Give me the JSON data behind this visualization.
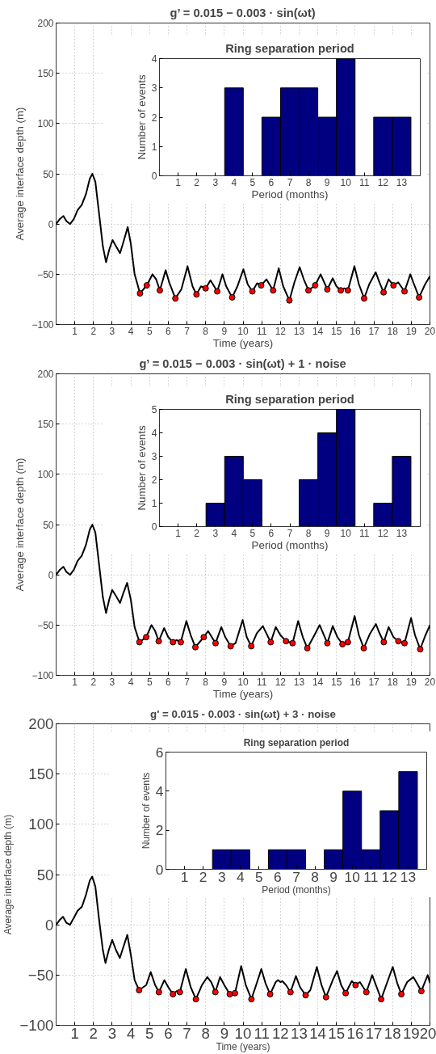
{
  "chart_data": [
    {
      "type": "line",
      "title": "g’ = 0.015 − 0.003 · sin(ωt)",
      "xlabel": "Time (years)",
      "ylabel": "Average interface depth (m)",
      "xlim": [
        0,
        20
      ],
      "ylim": [
        -100,
        200
      ],
      "xticks": [
        1,
        2,
        3,
        4,
        5,
        6,
        7,
        8,
        9,
        10,
        11,
        12,
        13,
        14,
        15,
        16,
        17,
        18,
        19,
        20
      ],
      "yticks": [
        -100,
        -50,
        0,
        50,
        100,
        150,
        200
      ],
      "grid": true,
      "series": [
        {
          "type": "line",
          "color": "#000000",
          "x": [
            0,
            0.2,
            0.39,
            0.55,
            0.75,
            0.95,
            1.15,
            1.37,
            1.6,
            1.8,
            1.94,
            2.1,
            2.3,
            2.5,
            2.67,
            2.85,
            3.02,
            3.2,
            3.42,
            3.6,
            3.83,
            4.0,
            4.2,
            4.49,
            4.85,
            5.16,
            5.35,
            5.55,
            5.86,
            6.05,
            6.38,
            6.7,
            7.03,
            7.3,
            7.51,
            7.75,
            8.0,
            8.26,
            8.62,
            8.9,
            9.1,
            9.42,
            9.7,
            10.02,
            10.25,
            10.5,
            10.75,
            10.97,
            11.25,
            11.61,
            11.91,
            12.15,
            12.48,
            12.75,
            13.03,
            13.25,
            13.5,
            13.86,
            14.15,
            14.51,
            14.8,
            15.0,
            15.23,
            15.42,
            15.61,
            15.96,
            16.2,
            16.48,
            16.75,
            17.1,
            17.3,
            17.52,
            17.79,
            18.05,
            18.3,
            18.64,
            18.95,
            19.15,
            19.42,
            19.74,
            20
          ],
          "values": [
            0,
            5,
            8,
            3,
            0,
            5,
            14,
            19,
            30,
            45,
            50,
            42,
            10,
            -22,
            -38,
            -25,
            -16,
            -22,
            -29,
            -18,
            -3,
            -20,
            -50,
            -69,
            -61,
            -50,
            -55,
            -66,
            -46,
            -58,
            -74,
            -65,
            -42,
            -62,
            -70,
            -62,
            -64,
            -56,
            -67,
            -50,
            -62,
            -73,
            -62,
            -45,
            -60,
            -67,
            -59,
            -61,
            -55,
            -66,
            -44,
            -62,
            -76,
            -58,
            -43,
            -55,
            -66,
            -61,
            -50,
            -65,
            -54,
            -62,
            -66,
            -64,
            -66,
            -42,
            -60,
            -74,
            -60,
            -48,
            -58,
            -68,
            -55,
            -61,
            -58,
            -67,
            -50,
            -60,
            -73,
            -60,
            -52
          ]
        },
        {
          "type": "scatter",
          "marker": "circle",
          "color": "#ff0000",
          "x": [
            4.49,
            4.85,
            5.55,
            6.38,
            7.51,
            8.0,
            8.62,
            9.42,
            10.5,
            10.97,
            11.61,
            12.48,
            13.5,
            13.86,
            14.51,
            15.23,
            15.61,
            16.48,
            17.52,
            18.05,
            18.64,
            19.42
          ],
          "values": [
            -69,
            -61,
            -66,
            -74,
            -70,
            -64,
            -67,
            -73,
            -67,
            -61,
            -66,
            -76,
            -66,
            -61,
            -65,
            -66,
            -66,
            -74,
            -68,
            -61,
            -67,
            -73
          ]
        }
      ]
    },
    {
      "type": "histogram",
      "title": "Ring separation period",
      "xlabel": "Period (months)",
      "ylabel": "Number of events",
      "color": "#000080",
      "bins": [
        0.5,
        1.5,
        2.5,
        3.5,
        4.5,
        5.5,
        6.5,
        7.5,
        8.5,
        9.5,
        10.5,
        11.5,
        12.5,
        13.5
      ],
      "values": [
        0,
        0,
        0,
        3,
        0,
        2,
        3,
        3,
        2,
        4,
        0,
        2,
        2
      ],
      "xlim": [
        0,
        14
      ],
      "ylim": [
        0,
        4
      ],
      "xticks": [
        1,
        2,
        3,
        4,
        5,
        6,
        7,
        8,
        9,
        10,
        11,
        12,
        13
      ],
      "yticks": [
        0,
        1,
        2,
        3,
        4
      ]
    },
    {
      "type": "line",
      "title": "g’ = 0.015 − 0.003 · sin(ωt) + 1 · noise",
      "xlabel": "Time (years)",
      "ylabel": "Average interface depth (m)",
      "xlim": [
        0,
        20
      ],
      "ylim": [
        -100,
        200
      ],
      "xticks": [
        1,
        2,
        3,
        4,
        5,
        6,
        7,
        8,
        9,
        10,
        11,
        12,
        13,
        14,
        15,
        16,
        17,
        18,
        19,
        20
      ],
      "yticks": [
        -100,
        -50,
        0,
        50,
        100,
        150,
        200
      ],
      "grid": true,
      "series": [
        {
          "type": "line",
          "color": "#000000",
          "x": [
            0,
            0.2,
            0.39,
            0.55,
            0.75,
            0.95,
            1.15,
            1.37,
            1.6,
            1.8,
            1.94,
            2.1,
            2.3,
            2.5,
            2.67,
            2.85,
            3.0,
            3.2,
            3.42,
            3.6,
            3.8,
            4.0,
            4.2,
            4.46,
            4.82,
            5.1,
            5.3,
            5.49,
            5.78,
            6.0,
            6.25,
            6.45,
            6.67,
            6.97,
            7.2,
            7.45,
            7.9,
            8.13,
            8.53,
            8.84,
            9.05,
            9.34,
            9.6,
            9.98,
            10.2,
            10.44,
            10.74,
            11.06,
            11.48,
            11.75,
            12.0,
            12.3,
            12.65,
            12.95,
            13.2,
            13.44,
            13.82,
            14.1,
            14.51,
            14.8,
            15.05,
            15.32,
            15.61,
            15.97,
            16.2,
            16.46,
            16.78,
            17.11,
            17.3,
            17.53,
            17.79,
            18.05,
            18.31,
            18.64,
            18.99,
            19.2,
            19.48,
            19.74,
            20
          ],
          "values": [
            0,
            5,
            8,
            3,
            0,
            5,
            14,
            19,
            30,
            45,
            50,
            42,
            10,
            -22,
            -38,
            -24,
            -15,
            -21,
            -28,
            -18,
            -8,
            -25,
            -52,
            -67,
            -62,
            -50,
            -56,
            -66,
            -53,
            -62,
            -67,
            -65,
            -67,
            -46,
            -60,
            -72,
            -62,
            -56,
            -68,
            -52,
            -62,
            -71,
            -68,
            -45,
            -62,
            -71,
            -58,
            -51,
            -67,
            -52,
            -60,
            -66,
            -68,
            -46,
            -62,
            -73,
            -60,
            -50,
            -68,
            -51,
            -62,
            -69,
            -67,
            -41,
            -60,
            -73,
            -59,
            -49,
            -58,
            -67,
            -52,
            -62,
            -66,
            -68,
            -43,
            -60,
            -74,
            -61,
            -50
          ]
        },
        {
          "type": "scatter",
          "marker": "circle",
          "color": "#ff0000",
          "x": [
            4.46,
            4.82,
            5.49,
            6.25,
            6.67,
            7.45,
            7.9,
            8.53,
            9.34,
            10.44,
            11.48,
            12.3,
            12.65,
            13.44,
            14.51,
            15.32,
            15.61,
            16.46,
            17.53,
            18.31,
            18.64,
            19.48
          ],
          "values": [
            -67,
            -62,
            -66,
            -67,
            -67,
            -72,
            -62,
            -68,
            -71,
            -71,
            -67,
            -66,
            -68,
            -73,
            -68,
            -69,
            -67,
            -73,
            -67,
            -66,
            -68,
            -74
          ]
        }
      ]
    },
    {
      "type": "histogram",
      "title": "Ring separation period",
      "xlabel": "Period (months)",
      "ylabel": "Number of events",
      "color": "#000080",
      "bins": [
        0.5,
        1.5,
        2.5,
        3.5,
        4.5,
        5.5,
        6.5,
        7.5,
        8.5,
        9.5,
        10.5,
        11.5,
        12.5,
        13.5
      ],
      "values": [
        0,
        0,
        1,
        3,
        2,
        0,
        0,
        2,
        4,
        5,
        0,
        1,
        3
      ],
      "xlim": [
        0,
        14
      ],
      "ylim": [
        0,
        5
      ],
      "xticks": [
        1,
        2,
        3,
        4,
        5,
        6,
        7,
        8,
        9,
        10,
        11,
        12,
        13
      ],
      "yticks": [
        0,
        1,
        2,
        3,
        4,
        5
      ]
    },
    {
      "type": "line",
      "title": "g' = 0.015 - 0.003 · sin(ωt) + 3 · noise",
      "xlabel": "Time (years)",
      "ylabel": "Average interface depth (m)",
      "xlim": [
        0,
        20
      ],
      "ylim": [
        -100,
        200
      ],
      "xticks": [
        1,
        2,
        3,
        4,
        5,
        6,
        7,
        8,
        9,
        10,
        11,
        12,
        13,
        14,
        15,
        16,
        17,
        18,
        19,
        20
      ],
      "yticks": [
        -100,
        -50,
        0,
        50,
        100,
        150,
        200
      ],
      "grid": true,
      "series": [
        {
          "type": "line",
          "color": "#000000",
          "x": [
            0,
            0.2,
            0.37,
            0.55,
            0.74,
            0.95,
            1.15,
            1.38,
            1.6,
            1.8,
            1.93,
            2.1,
            2.3,
            2.5,
            2.64,
            2.82,
            3.0,
            3.2,
            3.41,
            3.6,
            3.81,
            4.0,
            4.2,
            4.44,
            4.82,
            5.06,
            5.3,
            5.5,
            5.79,
            6.0,
            6.25,
            6.45,
            6.62,
            6.94,
            7.2,
            7.48,
            7.8,
            8.09,
            8.3,
            8.52,
            8.77,
            9.0,
            9.29,
            9.45,
            9.57,
            9.9,
            10.15,
            10.45,
            10.7,
            10.98,
            11.2,
            11.45,
            11.75,
            11.87,
            12.0,
            12.1,
            12.3,
            12.54,
            12.83,
            13.05,
            13.35,
            13.6,
            13.95,
            14.2,
            14.44,
            14.8,
            15.03,
            15.25,
            15.49,
            15.82,
            16.02,
            16.25,
            16.6,
            16.91,
            17.15,
            17.39,
            17.7,
            18.01,
            18.25,
            18.47,
            18.78,
            19.11,
            19.3,
            19.54,
            19.88,
            20
          ],
          "values": [
            0,
            5,
            8,
            2,
            0,
            7,
            14,
            18,
            30,
            44,
            48,
            38,
            5,
            -25,
            -38,
            -25,
            -15,
            -25,
            -33,
            -22,
            -10,
            -30,
            -55,
            -65,
            -60,
            -47,
            -60,
            -67,
            -55,
            -62,
            -69,
            -66,
            -67,
            -44,
            -62,
            -74,
            -60,
            -52,
            -57,
            -67,
            -52,
            -60,
            -69,
            -67,
            -68,
            -41,
            -60,
            -74,
            -60,
            -44,
            -58,
            -69,
            -57,
            -55,
            -57,
            -56,
            -60,
            -67,
            -51,
            -62,
            -70,
            -65,
            -42,
            -60,
            -72,
            -55,
            -46,
            -60,
            -68,
            -56,
            -60,
            -57,
            -67,
            -50,
            -62,
            -74,
            -58,
            -42,
            -58,
            -69,
            -57,
            -52,
            -58,
            -66,
            -50,
            -58
          ]
        },
        {
          "type": "scatter",
          "marker": "circle",
          "color": "#ff0000",
          "x": [
            4.44,
            5.5,
            6.25,
            6.62,
            7.48,
            8.52,
            9.29,
            9.57,
            10.45,
            11.45,
            12.54,
            13.35,
            14.44,
            15.49,
            16.02,
            16.6,
            17.39,
            18.47,
            19.54
          ],
          "values": [
            -65,
            -67,
            -69,
            -67,
            -74,
            -67,
            -69,
            -68,
            -74,
            -69,
            -67,
            -70,
            -72,
            -68,
            -60,
            -67,
            -74,
            -69,
            -66
          ]
        }
      ]
    },
    {
      "type": "histogram",
      "title": "Ring separation period",
      "xlabel": "Period (months)",
      "ylabel": "Number of events",
      "color": "#000080",
      "bins": [
        0.5,
        1.5,
        2.5,
        3.5,
        4.5,
        5.5,
        6.5,
        7.5,
        8.5,
        9.5,
        10.5,
        11.5,
        12.5,
        13.5
      ],
      "values": [
        0,
        0,
        1,
        1,
        0,
        1,
        1,
        0,
        1,
        4,
        1,
        3,
        5
      ],
      "xlim": [
        0,
        14
      ],
      "ylim": [
        0,
        6
      ],
      "xticks": [
        1,
        2,
        3,
        4,
        5,
        6,
        7,
        8,
        9,
        10,
        11,
        12,
        13
      ],
      "yticks": [
        0,
        2,
        4,
        6
      ]
    }
  ]
}
